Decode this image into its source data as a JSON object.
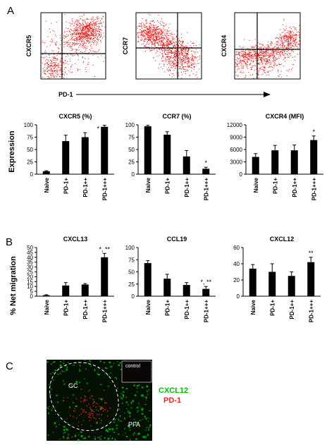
{
  "panel_labels": {
    "a": "A",
    "b": "B",
    "c": "C"
  },
  "flow": {
    "plots": [
      {
        "ylabel": "CXCR5"
      },
      {
        "ylabel": "CCR7"
      },
      {
        "ylabel": "CXCR4"
      }
    ],
    "xlabel": "PD-1",
    "dot_color": "#ff0000"
  },
  "y_axis_titles": {
    "expression": "Expression",
    "net_migration": "% Net migration"
  },
  "chart_data": [
    {
      "type": "bar",
      "title": "CXCR5  (%)",
      "categories": [
        "Naive",
        "PD-1+",
        "PD-1++",
        "PD-1+++"
      ],
      "values": [
        6,
        67,
        75,
        96
      ],
      "errors": [
        1,
        12,
        9,
        3
      ],
      "ylim": [
        0,
        100
      ],
      "yticks": [
        0,
        25,
        50,
        75,
        100
      ],
      "sig": [
        "",
        "",
        "",
        "*"
      ],
      "sig_position": "left"
    },
    {
      "type": "bar",
      "title": "CCR7 (%)",
      "categories": [
        "Naive",
        "PD-1+",
        "PD-1++",
        "PD-1+++"
      ],
      "values": [
        97,
        80,
        36,
        11
      ],
      "errors": [
        2,
        6,
        12,
        3
      ],
      "ylim": [
        0,
        100
      ],
      "yticks": [
        0,
        25,
        50,
        75,
        100
      ],
      "sig": [
        "",
        "",
        "",
        "*"
      ],
      "sig_position": "top"
    },
    {
      "type": "bar",
      "title": "CXCR4 (MFI)",
      "categories": [
        "Naive",
        "PD-1+",
        "PD-1++",
        "PD-1+++"
      ],
      "values": [
        4200,
        5800,
        5800,
        8300
      ],
      "errors": [
        800,
        1200,
        1300,
        1000
      ],
      "ylim": [
        0,
        12000
      ],
      "yticks": [
        0,
        3000,
        6000,
        9000,
        12000
      ],
      "sig": [
        "",
        "",
        "",
        "*"
      ],
      "sig_position": "top"
    },
    {
      "type": "bar",
      "title": "CXCL13",
      "categories": [
        "Naive",
        "PD-1+",
        "PD-1++",
        "PD-1+++"
      ],
      "values": [
        1,
        11,
        12,
        40
      ],
      "errors": [
        0.5,
        3,
        1,
        4
      ],
      "ylim": [
        0,
        50
      ],
      "yticks": [
        0,
        5,
        10,
        15,
        20,
        25,
        30,
        35,
        40,
        45,
        50
      ],
      "sig": [
        "",
        "",
        "",
        "*, **"
      ],
      "sig_position": "top"
    },
    {
      "type": "bar",
      "title": "CCL19",
      "categories": [
        "Naive",
        "PD-1+",
        "PD-1++",
        "PD-1+++"
      ],
      "values": [
        68,
        36,
        23,
        15
      ],
      "errors": [
        5,
        9,
        5,
        5
      ],
      "ylim": [
        0,
        100
      ],
      "yticks": [
        0,
        25,
        50,
        75,
        100
      ],
      "sig": [
        "",
        "",
        "",
        "*, **"
      ],
      "sig_position": "top"
    },
    {
      "type": "bar",
      "title": "CXCL12",
      "categories": [
        "Naive",
        "PD-1+",
        "PD-1++",
        "PD-1+++"
      ],
      "values": [
        34,
        30,
        25,
        42
      ],
      "errors": [
        5,
        10,
        5,
        6
      ],
      "ylim": [
        0,
        60
      ],
      "yticks": [
        0,
        20,
        40,
        60
      ],
      "sig": [
        "",
        "",
        "",
        "**"
      ],
      "sig_position": "top"
    }
  ],
  "micrograph": {
    "legend": [
      {
        "label": "CXCL12",
        "color": "#00c000"
      },
      {
        "label": "PD-1",
        "color": "#ff2020"
      }
    ],
    "labels": {
      "gc": "GC",
      "pfa": "PFA",
      "control": "control"
    }
  }
}
